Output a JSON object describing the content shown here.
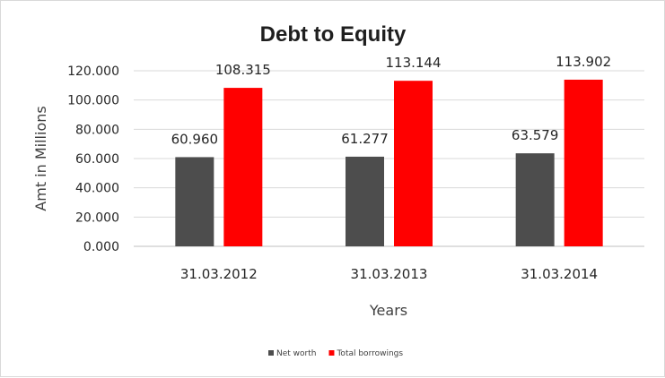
{
  "chart_data": {
    "type": "bar",
    "title": "Debt to Equity",
    "xlabel": "Years",
    "ylabel": "Amt in Millions",
    "categories": [
      "31.03.2012",
      "31.03.2013",
      "31.03.2014"
    ],
    "series": [
      {
        "name": "Net worth",
        "values": [
          60.96,
          61.277,
          63.579
        ],
        "labels": [
          "60.960",
          "61.277",
          "63.579"
        ],
        "color": "#4d4d4d"
      },
      {
        "name": "Total borrowings",
        "values": [
          108.315,
          113.144,
          113.902
        ],
        "labels": [
          "108.315",
          "113.144",
          "113.902"
        ],
        "color": "#ff0000"
      }
    ],
    "ylim": [
      0,
      120
    ],
    "yticks": [
      "0.000",
      "20.000",
      "40.000",
      "60.000",
      "80.000",
      "100.000",
      "120.000"
    ],
    "grid": true,
    "legend_position": "bottom"
  }
}
